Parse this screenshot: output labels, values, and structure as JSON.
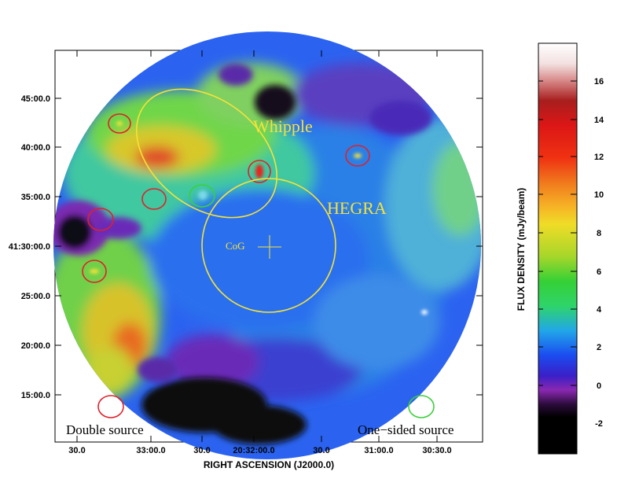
{
  "map": {
    "dec_ticks": [
      "45:00.0",
      "40:00.0",
      "35:00.0",
      "41:30:00.0",
      "25:00.0",
      "20:00.0",
      "15:00.0"
    ],
    "ra_ticks": [
      "30.0",
      "33:00.0",
      "30.0",
      "20:32:00.0",
      "30.0",
      "31:00.0",
      "30:30.0"
    ],
    "xlabel": "RIGHT ASCENSION (J2000.0)"
  },
  "annotations": {
    "whipple": "Whipple",
    "hegra": "HEGRA",
    "cog": "CoG",
    "double_source": "Double source",
    "one_sided_source": "One−sided source"
  },
  "colorbar": {
    "label": "FLUX DENSITY  (mJy/beam)",
    "ticks": [
      "16",
      "14",
      "12",
      "10",
      "8",
      "6",
      "4",
      "2",
      "0",
      "-2"
    ]
  },
  "colors": {
    "marker_red": "#e0202a",
    "marker_green": "#3ccf3c",
    "marker_yellow": "#f5e23a"
  }
}
